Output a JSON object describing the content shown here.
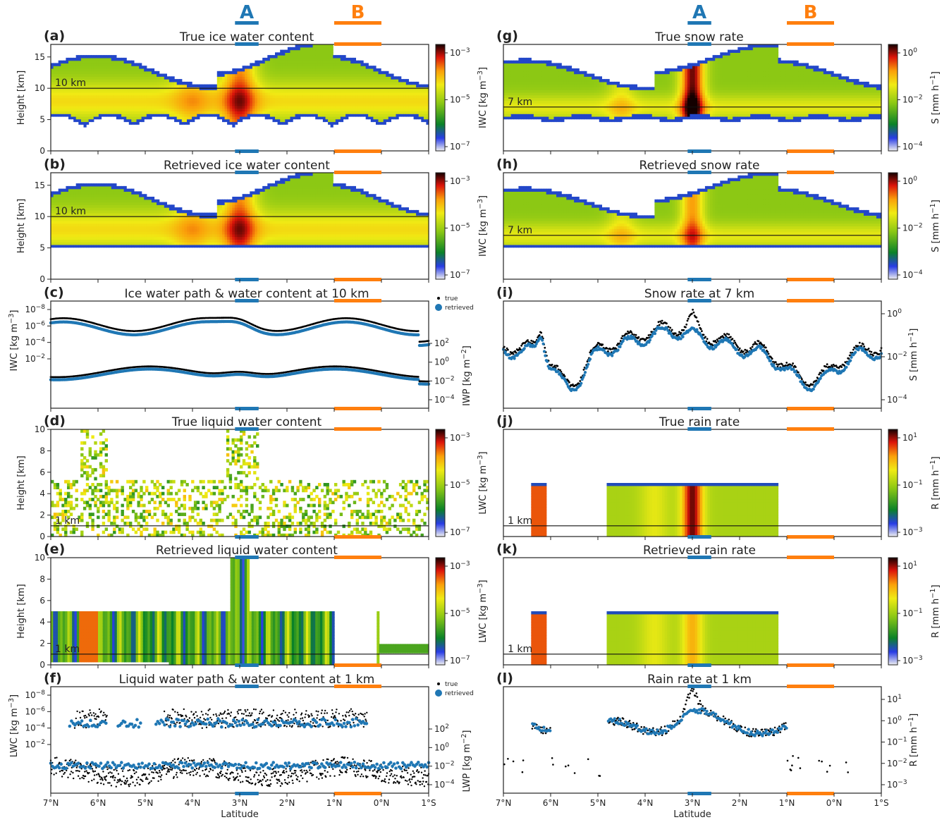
{
  "regions": [
    {
      "label": "A",
      "color": "#1f77b4"
    },
    {
      "label": "B",
      "color": "#ff7f0e"
    }
  ],
  "colors": {
    "true": "#000000",
    "retrieved": "#1f77b4"
  },
  "x_axis": {
    "label": "Latitude",
    "tick_labels": [
      "7$N",
      "6$N",
      "5$N",
      "4$N",
      "3$N",
      "2$N",
      "1$N",
      "0$N",
      "1$S"
    ]
  },
  "chart_data": [
    {
      "id": "a",
      "panel": "(a)",
      "type": "heatmap",
      "title": "True ice water content",
      "ylabel": "Height [km]",
      "yticks": [
        "0",
        "5",
        "10",
        "15"
      ],
      "ylim": [
        0,
        17
      ],
      "ref_line": {
        "value": 10,
        "label": "10 km"
      },
      "colorbar": {
        "label": "IWC [kg m$^{-3}$]",
        "ticks": [
          "10$^{-3}$",
          "10$^{-5}$",
          "10$^{-7}$"
        ],
        "scale": "log",
        "range": [
          1e-07,
          0.01
        ]
      }
    },
    {
      "id": "b",
      "panel": "(b)",
      "type": "heatmap",
      "title": "Retrieved ice water content",
      "ylabel": "Height [km]",
      "yticks": [
        "0",
        "5",
        "10",
        "15"
      ],
      "ylim": [
        0,
        17
      ],
      "ref_line": {
        "value": 10,
        "label": "10 km"
      },
      "colorbar": {
        "label": "IWC [kg m$^{-3}$]",
        "ticks": [
          "10$^{-3}$",
          "10$^{-5}$",
          "10$^{-7}$"
        ],
        "scale": "log",
        "range": [
          1e-07,
          0.01
        ]
      }
    },
    {
      "id": "c",
      "panel": "(c)",
      "type": "line",
      "title": "Ice water path & water content at 10 km",
      "ylabel": "IWC [kg m$^{-3}$]",
      "yticks": [
        "10$^{-2}$",
        "10$^{-4}$",
        "10$^{-6}$",
        "10$^{-8}$"
      ],
      "ylabel_right": "IWP [kg m$^{-2}$]",
      "yticks_right": [
        "10$^{2}$",
        "10$^{0}$",
        "10$^{-2}$",
        "10$^{-4}$"
      ],
      "legend": [
        "true",
        "retrieved"
      ],
      "legend_position": "top-right"
    },
    {
      "id": "d",
      "panel": "(d)",
      "type": "heatmap",
      "title": "True liquid water content",
      "ylabel": "Height [km]",
      "yticks": [
        "0",
        "2",
        "4",
        "6",
        "8",
        "10"
      ],
      "ylim": [
        0,
        10
      ],
      "ref_line": {
        "value": 1,
        "label": "1 km"
      },
      "colorbar": {
        "label": "LWC [kg m$^{-3}$]",
        "ticks": [
          "10$^{-3}$",
          "10$^{-5}$",
          "10$^{-7}$"
        ],
        "scale": "log",
        "range": [
          1e-07,
          0.01
        ]
      }
    },
    {
      "id": "e",
      "panel": "(e)",
      "type": "heatmap",
      "title": "Retrieved liquid water content",
      "ylabel": "Height [km]",
      "yticks": [
        "0",
        "2",
        "4",
        "6",
        "8",
        "10"
      ],
      "ylim": [
        0,
        10
      ],
      "ref_line": {
        "value": 1,
        "label": "1 km"
      },
      "colorbar": {
        "label": "LWC [kg m$^{-3}$]",
        "ticks": [
          "10$^{-3}$",
          "10$^{-5}$",
          "10$^{-7}$"
        ],
        "scale": "log",
        "range": [
          1e-07,
          0.01
        ]
      }
    },
    {
      "id": "f",
      "panel": "(f)",
      "type": "scatter",
      "title": "Liquid water path & water content at 1 km",
      "ylabel": "LWC [kg m$^{-3}$]",
      "yticks": [
        "10$^{-2}$",
        "10$^{-4}$",
        "10$^{-6}$",
        "10$^{-8}$"
      ],
      "ylabel_right": "LWP [kg m$^{-2}$]",
      "yticks_right": [
        "10$^{2}$",
        "10$^{0}$",
        "10$^{-2}$",
        "10$^{-4}$"
      ],
      "legend": [
        "true",
        "retrieved"
      ],
      "legend_position": "top-right"
    },
    {
      "id": "g",
      "panel": "(g)",
      "type": "heatmap",
      "title": "True snow rate",
      "ref_line": {
        "value": 7,
        "label": "7 km"
      },
      "colorbar": {
        "label": "S [mm h$^{-1}$]",
        "ticks": [
          "10$^{0}$",
          "10$^{-2}$",
          "10$^{-4}$"
        ],
        "scale": "log",
        "range": [
          0.0001,
          30
        ]
      }
    },
    {
      "id": "h",
      "panel": "(h)",
      "type": "heatmap",
      "title": "Retrieved snow rate",
      "ref_line": {
        "value": 7,
        "label": "7 km"
      },
      "colorbar": {
        "label": "S [mm h$^{-1}$]",
        "ticks": [
          "10$^{0}$",
          "10$^{-2}$",
          "10$^{-4}$"
        ],
        "scale": "log",
        "range": [
          0.0001,
          30
        ]
      }
    },
    {
      "id": "i",
      "panel": "(i)",
      "type": "scatter",
      "title": "Snow rate at 7 km",
      "ylabel_right": "S [mm h$^{-1}$]",
      "yticks_right": [
        "10$^{0}$",
        "10$^{-2}$",
        "10$^{-4}$"
      ]
    },
    {
      "id": "j",
      "panel": "(j)",
      "type": "heatmap",
      "title": "True rain rate",
      "ref_line": {
        "value": 1,
        "label": "1 km"
      },
      "colorbar": {
        "label": "R [mm h$^{-1}$]",
        "ticks": [
          "10$^{1}$",
          "10$^{-1}$",
          "10$^{-3}$"
        ],
        "scale": "log",
        "range": [
          0.001,
          30
        ]
      }
    },
    {
      "id": "k",
      "panel": "(k)",
      "type": "heatmap",
      "title": "Retrieved rain rate",
      "ref_line": {
        "value": 1,
        "label": "1 km"
      },
      "colorbar": {
        "label": "R [mm h$^{-1}$]",
        "ticks": [
          "10$^{1}$",
          "10$^{-1}$",
          "10$^{-3}$"
        ],
        "scale": "log",
        "range": [
          0.001,
          30
        ]
      }
    },
    {
      "id": "l",
      "panel": "(l)",
      "type": "scatter",
      "title": "Rain rate at 1 km",
      "ylabel_right": "R [mm h$^{-1}$]",
      "yticks_right": [
        "10$^{1}$",
        "10$^{0}$",
        "10$^{-1}$",
        "10$^{-2}$",
        "10$^{-3}$"
      ]
    }
  ]
}
